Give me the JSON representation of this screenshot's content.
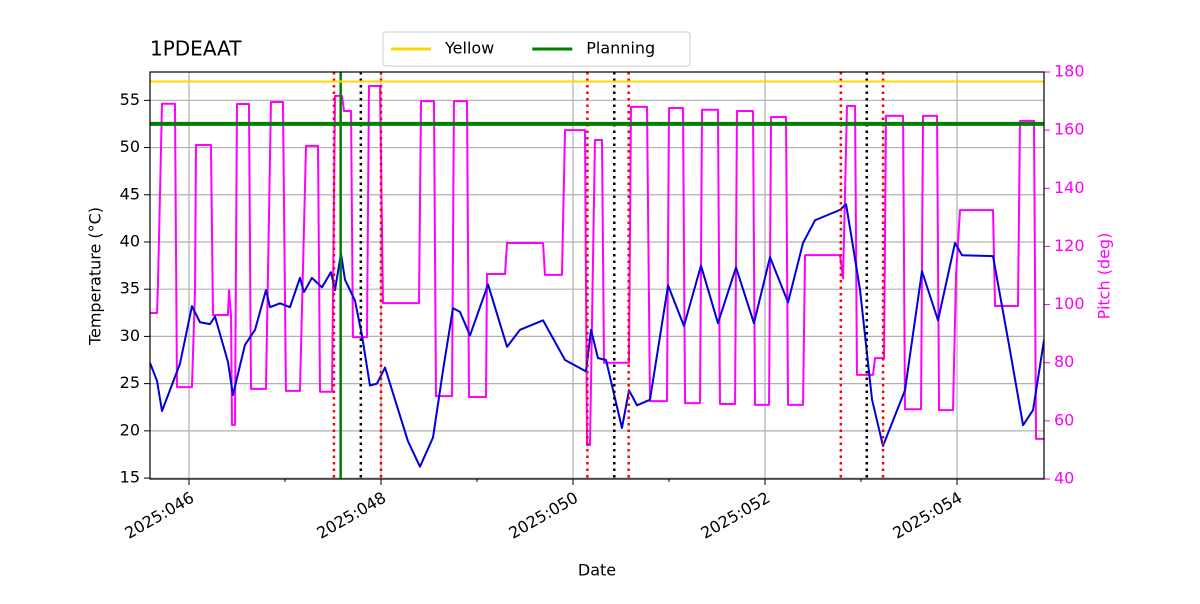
{
  "chart_data": {
    "type": "line",
    "title": "1PDEAAT",
    "xlabel": "Date",
    "ylabel": "Temperature (°C)",
    "y2label": "Pitch (deg)",
    "xlim": [
      45.594,
      54.906
    ],
    "ylim": [
      14.9,
      58
    ],
    "y2lim": [
      40,
      180
    ],
    "xticks": [
      {
        "value": 46,
        "label": "2025:046"
      },
      {
        "value": 48,
        "label": "2025:048"
      },
      {
        "value": 50,
        "label": "2025:050"
      },
      {
        "value": 52,
        "label": "2025:052"
      },
      {
        "value": 54,
        "label": "2025:054"
      }
    ],
    "xminorticks": [
      47,
      49,
      51,
      53
    ],
    "yticks": [
      15,
      20,
      25,
      30,
      35,
      40,
      45,
      50,
      55
    ],
    "y2ticks": [
      40,
      60,
      80,
      100,
      120,
      140,
      160,
      180
    ],
    "grid": true,
    "legend": "top",
    "hlines": [
      {
        "name": "Yellow",
        "value": 57,
        "color": "#ffd700"
      },
      {
        "name": "Planning",
        "value": 52.5,
        "color": "#008000"
      }
    ],
    "vlines": [
      {
        "x": 47.58,
        "color": "#008000",
        "style": "solid"
      },
      {
        "x": 47.51,
        "color": "#ff0000",
        "style": "dotted"
      },
      {
        "x": 48.0,
        "color": "#ff0000",
        "style": "dotted"
      },
      {
        "x": 50.15,
        "color": "#ff0000",
        "style": "dotted"
      },
      {
        "x": 50.58,
        "color": "#ff0000",
        "style": "dotted"
      },
      {
        "x": 52.79,
        "color": "#ff0000",
        "style": "dotted"
      },
      {
        "x": 53.23,
        "color": "#ff0000",
        "style": "dotted"
      },
      {
        "x": 47.79,
        "color": "#000000",
        "style": "dotted"
      },
      {
        "x": 50.43,
        "color": "#000000",
        "style": "dotted"
      },
      {
        "x": 53.06,
        "color": "#000000",
        "style": "dotted"
      }
    ],
    "series": [
      {
        "color": "#ff00ff",
        "axis": "y2",
        "x": [
          45.594,
          45.667,
          45.677,
          45.719,
          45.854,
          45.875,
          46.031,
          46.063,
          46.073,
          46.229,
          46.25,
          46.406,
          46.417,
          46.438,
          46.448,
          46.479,
          46.5,
          46.625,
          46.646,
          46.802,
          46.854,
          46.979,
          47.01,
          47.156,
          47.219,
          47.344,
          47.365,
          47.49,
          47.521,
          47.594,
          47.615,
          47.688,
          47.708,
          47.854,
          47.875,
          47.99,
          48.021,
          48.396,
          48.417,
          48.552,
          48.573,
          48.74,
          48.76,
          48.896,
          48.917,
          49.094,
          49.104,
          49.292,
          49.313,
          49.688,
          49.708,
          49.885,
          49.917,
          50.125,
          50.146,
          50.177,
          50.229,
          50.302,
          50.323,
          50.583,
          50.604,
          50.771,
          50.802,
          50.979,
          51.0,
          51.146,
          51.167,
          51.323,
          51.344,
          51.51,
          51.531,
          51.688,
          51.708,
          51.875,
          51.896,
          52.042,
          52.063,
          52.219,
          52.24,
          52.396,
          52.417,
          52.781,
          52.813,
          52.854,
          52.938,
          52.958,
          53.125,
          53.146,
          53.24,
          53.26,
          53.438,
          53.458,
          53.625,
          53.646,
          53.792,
          53.813,
          53.958,
          53.99,
          54.031,
          54.375,
          54.396,
          54.635,
          54.656,
          54.802,
          54.823,
          54.906
        ],
        "values": [
          97.1,
          97.1,
          106.7,
          169.1,
          169.1,
          71.6,
          71.6,
          105,
          154.9,
          154.9,
          96.4,
          96.4,
          105,
          96.4,
          58.6,
          58.6,
          169,
          169,
          71,
          71,
          169.7,
          169.7,
          70.3,
          70.3,
          154.6,
          154.6,
          70,
          70,
          171.8,
          171.8,
          166.6,
          166.6,
          88.8,
          88.8,
          175.2,
          175.2,
          100.5,
          100.5,
          170,
          170,
          68.5,
          68.5,
          170,
          170,
          68.2,
          68.2,
          110.5,
          110.5,
          121.2,
          121.2,
          110.2,
          110.2,
          160,
          160,
          51.7,
          51.7,
          156.6,
          156.6,
          80,
          80,
          168,
          168,
          66.8,
          66.8,
          167.6,
          167.6,
          66.1,
          66.1,
          167,
          167,
          65.8,
          65.8,
          166.6,
          166.6,
          65.5,
          65.5,
          164.5,
          164.5,
          65.5,
          65.5,
          117,
          117,
          109,
          168.3,
          168.3,
          75.8,
          75.8,
          81.6,
          81.6,
          164.9,
          164.9,
          64,
          64,
          164.9,
          164.9,
          63.7,
          63.7,
          110.2,
          132.5,
          132.5,
          99.5,
          99.5,
          163.2,
          163.2,
          53.8,
          53.8
        ]
      },
      {
        "color": "#0000dd",
        "x": [
          45.594,
          45.667,
          45.719,
          45.906,
          46.031,
          46.115,
          46.219,
          46.271,
          46.406,
          46.458,
          46.583,
          46.688,
          46.802,
          46.844,
          46.948,
          47.052,
          47.156,
          47.198,
          47.281,
          47.385,
          47.479,
          47.521,
          47.583,
          47.625,
          47.729,
          47.802,
          47.885,
          47.958,
          48.042,
          48.146,
          48.281,
          48.406,
          48.542,
          48.646,
          48.75,
          48.823,
          48.927,
          49.115,
          49.313,
          49.448,
          49.688,
          49.917,
          50.135,
          50.188,
          50.26,
          50.344,
          50.51,
          50.583,
          50.667,
          50.802,
          50.99,
          51.156,
          51.333,
          51.51,
          51.698,
          51.885,
          52.052,
          52.24,
          52.396,
          52.521,
          52.781,
          52.844,
          52.906,
          52.99,
          53.115,
          53.229,
          53.458,
          53.635,
          53.802,
          53.979,
          54.052,
          54.375,
          54.552,
          54.688,
          54.792,
          54.906
        ],
        "values": [
          27.2,
          25.3,
          22.1,
          27.1,
          33.2,
          31.5,
          31.3,
          32.1,
          27.3,
          23.8,
          29.1,
          30.7,
          34.9,
          33.1,
          33.5,
          33.1,
          36.2,
          34.7,
          36.2,
          35.2,
          36.8,
          34.9,
          38.8,
          36,
          33.8,
          30.1,
          24.8,
          25,
          26.7,
          23.3,
          18.9,
          16.2,
          19.3,
          26.4,
          33,
          32.6,
          30.1,
          35.5,
          28.9,
          30.7,
          31.7,
          27.5,
          26.3,
          30.7,
          27.7,
          27.5,
          20.3,
          24.3,
          22.7,
          23.3,
          35.4,
          31.1,
          37.5,
          31.4,
          37.3,
          31.4,
          38.4,
          33.6,
          39.9,
          42.3,
          43.4,
          44,
          40.2,
          34.9,
          23.3,
          18.4,
          24.3,
          36.9,
          31.7,
          39.9,
          38.6,
          38.5,
          28.5,
          20.6,
          22.2,
          29.6
        ]
      }
    ]
  }
}
